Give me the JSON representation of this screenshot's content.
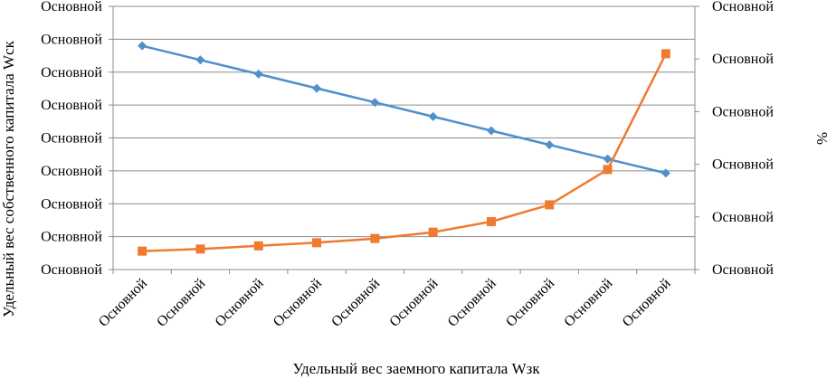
{
  "chart_data": {
    "type": "line",
    "title": "",
    "xlabel": "Удельный вес заемного капитала Wзк",
    "ylabel_left": "Удельный вес собственного капитала Wск",
    "ylabel_right": "%",
    "categories": [
      "Основной",
      "Основной",
      "Основной",
      "Основной",
      "Основной",
      "Основной",
      "Основной",
      "Основной",
      "Основной",
      "Основной"
    ],
    "y_left": {
      "ylim": [
        0,
        8
      ],
      "ticks": [
        0,
        1,
        2,
        3,
        4,
        5,
        6,
        7,
        8
      ],
      "tick_labels": [
        "Основной",
        "Основной",
        "Основной",
        "Основной",
        "Основной",
        "Основной",
        "Основной",
        "Основной",
        "Основной"
      ]
    },
    "y_right": {
      "ylim": [
        0,
        5
      ],
      "ticks": [
        0,
        1,
        2,
        3,
        4,
        5
      ],
      "tick_labels": [
        "Основной",
        "Основной",
        "Основной",
        "Основной",
        "Основной",
        "Основной"
      ]
    },
    "legend": "none",
    "grid": true,
    "series": [
      {
        "name": "Wск",
        "axis": "left",
        "marker": "diamond",
        "color": "#4f8fcb",
        "values": [
          6.8,
          6.37,
          5.94,
          5.51,
          5.08,
          4.65,
          4.22,
          3.79,
          3.36,
          2.93
        ]
      },
      {
        "name": "%",
        "axis": "right",
        "marker": "square",
        "color": "#ef7a30",
        "values": [
          0.35,
          0.39,
          0.45,
          0.51,
          0.59,
          0.71,
          0.91,
          1.23,
          1.9,
          4.1
        ]
      }
    ]
  }
}
